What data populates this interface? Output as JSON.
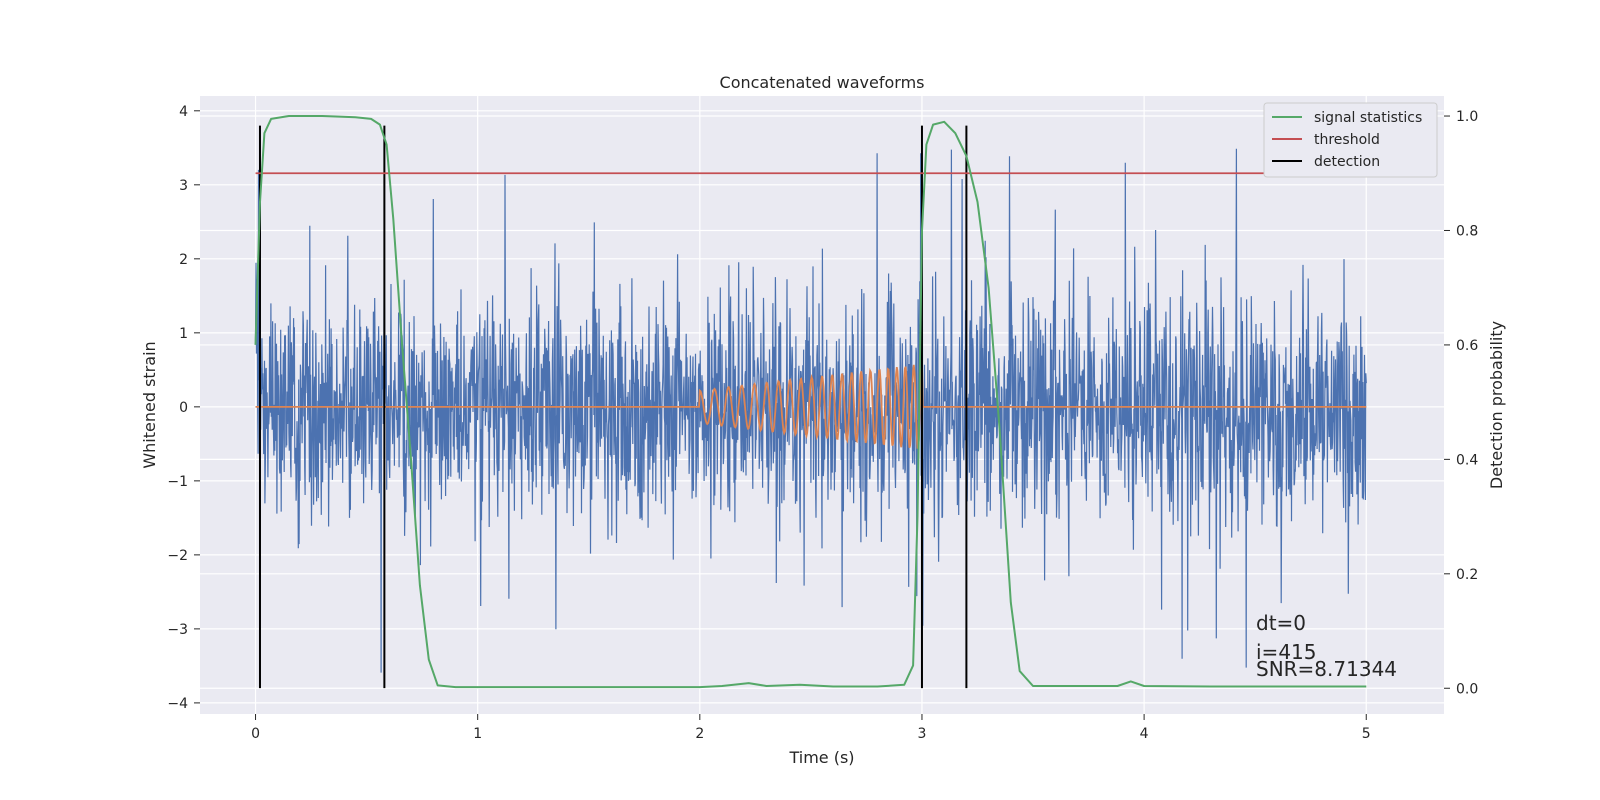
{
  "chart_data": {
    "type": "line",
    "title": "Concatenated waveforms",
    "xlabel": "Time (s)",
    "ylabel": "Whitened strain",
    "ylabel_right": "Detection probability",
    "xlim": [
      -0.25,
      5.35
    ],
    "ylim": [
      -4.15,
      4.2
    ],
    "ylim_right": [
      -0.045,
      1.035
    ],
    "x_ticks": [
      "0",
      "1",
      "2",
      "3",
      "4",
      "5"
    ],
    "y_ticks": [
      "4",
      "3",
      "2",
      "1",
      "0",
      "−1",
      "−2",
      "−3",
      "−4"
    ],
    "y_right_ticks": [
      "1.0",
      "0.8",
      "0.6",
      "0.4",
      "0.2",
      "0.0"
    ],
    "grid": true,
    "legend_position": "top-right",
    "legend": [
      "signal statistics",
      "threshold",
      "detection"
    ],
    "series": [
      {
        "name": "whitened strain",
        "axis": "left",
        "color": "#4c72b0",
        "x_range": [
          0,
          5
        ],
        "noise_std": 0.75,
        "peak_min": -3.8,
        "peak_max": 3.8
      },
      {
        "name": "injected waveform",
        "axis": "left",
        "color": "#dd8452",
        "x_range": [
          0,
          5
        ],
        "chirp_start": 2.0,
        "chirp_end": 3.0,
        "amplitude_start": 0.22,
        "amplitude_end": 0.58,
        "cycles": 21
      },
      {
        "name": "signal statistics",
        "axis": "right",
        "color": "#55a868",
        "x": [
          0.0,
          0.02,
          0.04,
          0.07,
          0.15,
          0.3,
          0.45,
          0.52,
          0.56,
          0.59,
          0.62,
          0.66,
          0.7,
          0.74,
          0.78,
          0.82,
          0.9,
          1.2,
          1.5,
          1.8,
          2.0,
          2.1,
          2.22,
          2.3,
          2.45,
          2.6,
          2.8,
          2.92,
          2.96,
          2.98,
          3.0,
          3.02,
          3.05,
          3.1,
          3.15,
          3.2,
          3.25,
          3.3,
          3.35,
          3.4,
          3.44,
          3.5,
          3.7,
          3.88,
          3.94,
          4.0,
          4.3,
          4.7,
          5.0
        ],
        "y": [
          0.6,
          0.85,
          0.97,
          0.995,
          1.0,
          1.0,
          0.998,
          0.995,
          0.985,
          0.95,
          0.82,
          0.6,
          0.4,
          0.18,
          0.05,
          0.005,
          0.002,
          0.002,
          0.002,
          0.002,
          0.002,
          0.004,
          0.009,
          0.004,
          0.006,
          0.003,
          0.003,
          0.006,
          0.04,
          0.3,
          0.8,
          0.95,
          0.985,
          0.99,
          0.97,
          0.93,
          0.85,
          0.7,
          0.45,
          0.15,
          0.03,
          0.004,
          0.004,
          0.004,
          0.012,
          0.004,
          0.003,
          0.003,
          0.003
        ]
      },
      {
        "name": "threshold",
        "axis": "right",
        "color": "#c44e52",
        "x": [
          0.0,
          5.1
        ],
        "y": [
          0.9,
          0.9
        ]
      }
    ],
    "detections": {
      "name": "detection",
      "color": "#000000",
      "x": [
        0.02,
        0.58,
        3.0,
        3.2
      ],
      "y_range": [
        -3.8,
        3.8
      ]
    },
    "annotations": [
      "dt=0",
      "i=415",
      "SNR=8.71344"
    ]
  }
}
